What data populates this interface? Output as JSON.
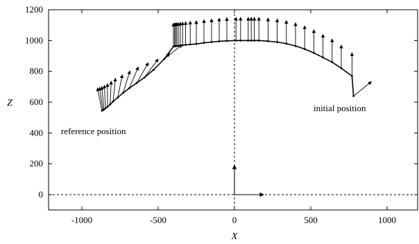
{
  "chart_data": {
    "type": "scatter",
    "title": "",
    "xlabel": "X",
    "ylabel": "Z",
    "xlim": [
      -1200,
      1200
    ],
    "ylim": [
      -100,
      1200
    ],
    "xticks": [
      -1000,
      -500,
      0,
      500,
      1000
    ],
    "yticks": [
      0,
      200,
      400,
      600,
      800,
      1000,
      1200
    ],
    "xtick_labels": [
      "-1000",
      "-500",
      "0",
      "500",
      "1000"
    ],
    "ytick_labels": [
      "0",
      "200",
      "400",
      "600",
      "800",
      "1000",
      "1200"
    ],
    "grid": false,
    "annotations": [
      {
        "text": "reference position",
        "x": -860,
        "y": 415
      },
      {
        "text": "initial position",
        "x": 500,
        "y": 565
      }
    ],
    "frame_origin": {
      "x": 0,
      "z": 0,
      "axis_length": 190
    },
    "trajectory": {
      "arc_center": {
        "x": 0,
        "z": -1050
      },
      "arc_radius": 2050,
      "vector_length": 150,
      "positions": [
        {
          "x": 780,
          "z": 640,
          "vx": 0.78,
          "vz": 0.62
        },
        {
          "x": 770,
          "z": 770,
          "vx": 0.0,
          "vz": 1.0
        },
        {
          "x": 700,
          "z": 820,
          "vx": 0.0,
          "vz": 1.0
        },
        {
          "x": 640,
          "z": 860,
          "vx": 0.0,
          "vz": 1.0
        },
        {
          "x": 580,
          "z": 890,
          "vx": 0.0,
          "vz": 1.0
        },
        {
          "x": 520,
          "z": 920,
          "vx": 0.0,
          "vz": 1.0
        },
        {
          "x": 460,
          "z": 945,
          "vx": 0.0,
          "vz": 1.0
        },
        {
          "x": 400,
          "z": 965,
          "vx": 0.0,
          "vz": 1.0
        },
        {
          "x": 340,
          "z": 980,
          "vx": 0.0,
          "vz": 1.0
        },
        {
          "x": 280,
          "z": 990,
          "vx": 0.0,
          "vz": 1.0
        },
        {
          "x": 220,
          "z": 996,
          "vx": 0.0,
          "vz": 1.0
        },
        {
          "x": 160,
          "z": 1000,
          "vx": 0.0,
          "vz": 1.0
        },
        {
          "x": 130,
          "z": 1000,
          "vx": 0.0,
          "vz": 1.0
        },
        {
          "x": 110,
          "z": 1000,
          "vx": 0.0,
          "vz": 1.0
        },
        {
          "x": 90,
          "z": 1000,
          "vx": 0.0,
          "vz": 1.0
        },
        {
          "x": 40,
          "z": 1000,
          "vx": 0.0,
          "vz": 1.0
        },
        {
          "x": 10,
          "z": 1000,
          "vx": 0.0,
          "vz": 1.0
        },
        {
          "x": -50,
          "z": 998,
          "vx": 0.0,
          "vz": 1.0
        },
        {
          "x": -100,
          "z": 995,
          "vx": 0.0,
          "vz": 1.0
        },
        {
          "x": -150,
          "z": 990,
          "vx": 0.0,
          "vz": 1.0
        },
        {
          "x": -200,
          "z": 985,
          "vx": 0.0,
          "vz": 1.0
        },
        {
          "x": -250,
          "z": 978,
          "vx": 0.0,
          "vz": 1.0
        },
        {
          "x": -290,
          "z": 975,
          "vx": 0.0,
          "vz": 1.0
        },
        {
          "x": -320,
          "z": 972,
          "vx": 0.0,
          "vz": 1.0
        },
        {
          "x": -340,
          "z": 970,
          "vx": 0.0,
          "vz": 1.0
        },
        {
          "x": -355,
          "z": 968,
          "vx": 0.0,
          "vz": 1.0
        },
        {
          "x": -368,
          "z": 966,
          "vx": 0.0,
          "vz": 1.0
        },
        {
          "x": -378,
          "z": 965,
          "vx": 0.0,
          "vz": 1.0
        },
        {
          "x": -386,
          "z": 964,
          "vx": 0.0,
          "vz": 1.0
        },
        {
          "x": -392,
          "z": 963,
          "vx": 0.0,
          "vz": 1.0
        },
        {
          "x": -400,
          "z": 962,
          "vx": 0.0,
          "vz": 1.0
        },
        {
          "x": -460,
          "z": 880,
          "vx": 0.78,
          "vz": 0.62
        },
        {
          "x": -530,
          "z": 810,
          "vx": 0.7,
          "vz": 0.71
        },
        {
          "x": -590,
          "z": 760,
          "vx": 0.6,
          "vz": 0.8
        },
        {
          "x": -640,
          "z": 725,
          "vx": 0.5,
          "vz": 0.87
        },
        {
          "x": -690,
          "z": 690,
          "vx": 0.4,
          "vz": 0.92
        },
        {
          "x": -730,
          "z": 660,
          "vx": 0.3,
          "vz": 0.95
        },
        {
          "x": -765,
          "z": 630,
          "vx": 0.2,
          "vz": 0.98
        },
        {
          "x": -795,
          "z": 605,
          "vx": 0.1,
          "vz": 1.0
        },
        {
          "x": -815,
          "z": 585,
          "vx": 0.05,
          "vz": 1.0
        },
        {
          "x": -832,
          "z": 570,
          "vx": 0.0,
          "vz": 1.0
        },
        {
          "x": -845,
          "z": 560,
          "vx": -0.05,
          "vz": 1.0
        },
        {
          "x": -855,
          "z": 553,
          "vx": -0.1,
          "vz": 0.99
        },
        {
          "x": -862,
          "z": 548,
          "vx": -0.15,
          "vz": 0.99
        },
        {
          "x": -868,
          "z": 545,
          "vx": -0.2,
          "vz": 0.98
        }
      ]
    }
  }
}
